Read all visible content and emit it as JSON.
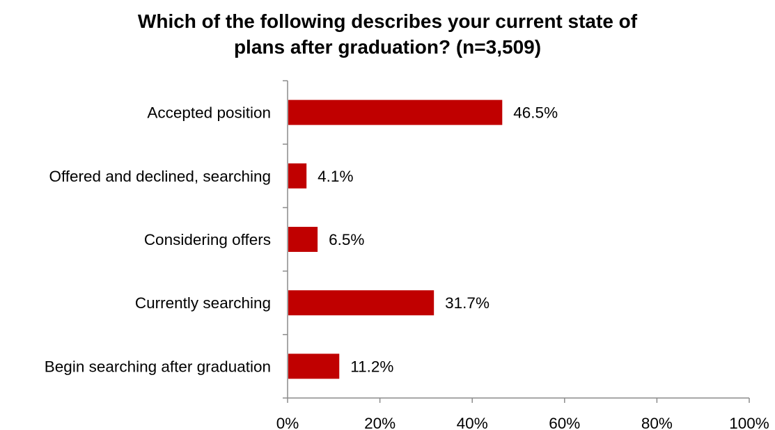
{
  "chart_data": {
    "type": "bar",
    "orientation": "horizontal",
    "title_lines": [
      "Which of the following describes your current state of",
      "plans after graduation? (n=3,509)"
    ],
    "categories": [
      "Accepted position",
      "Offered and declined, searching",
      "Considering offers",
      "Currently searching",
      "Begin searching after graduation"
    ],
    "values": [
      46.5,
      4.1,
      6.5,
      31.7,
      11.2
    ],
    "value_labels": [
      "46.5%",
      "4.1%",
      "6.5%",
      "31.7%",
      "11.2%"
    ],
    "xlim": [
      0,
      100
    ],
    "xticks": [
      0,
      20,
      40,
      60,
      80,
      100
    ],
    "xtick_labels": [
      "0%",
      "20%",
      "40%",
      "60%",
      "80%",
      "100%"
    ],
    "grid": false,
    "bar_color": "#C00000",
    "axis_color": "#8C8C8C"
  }
}
